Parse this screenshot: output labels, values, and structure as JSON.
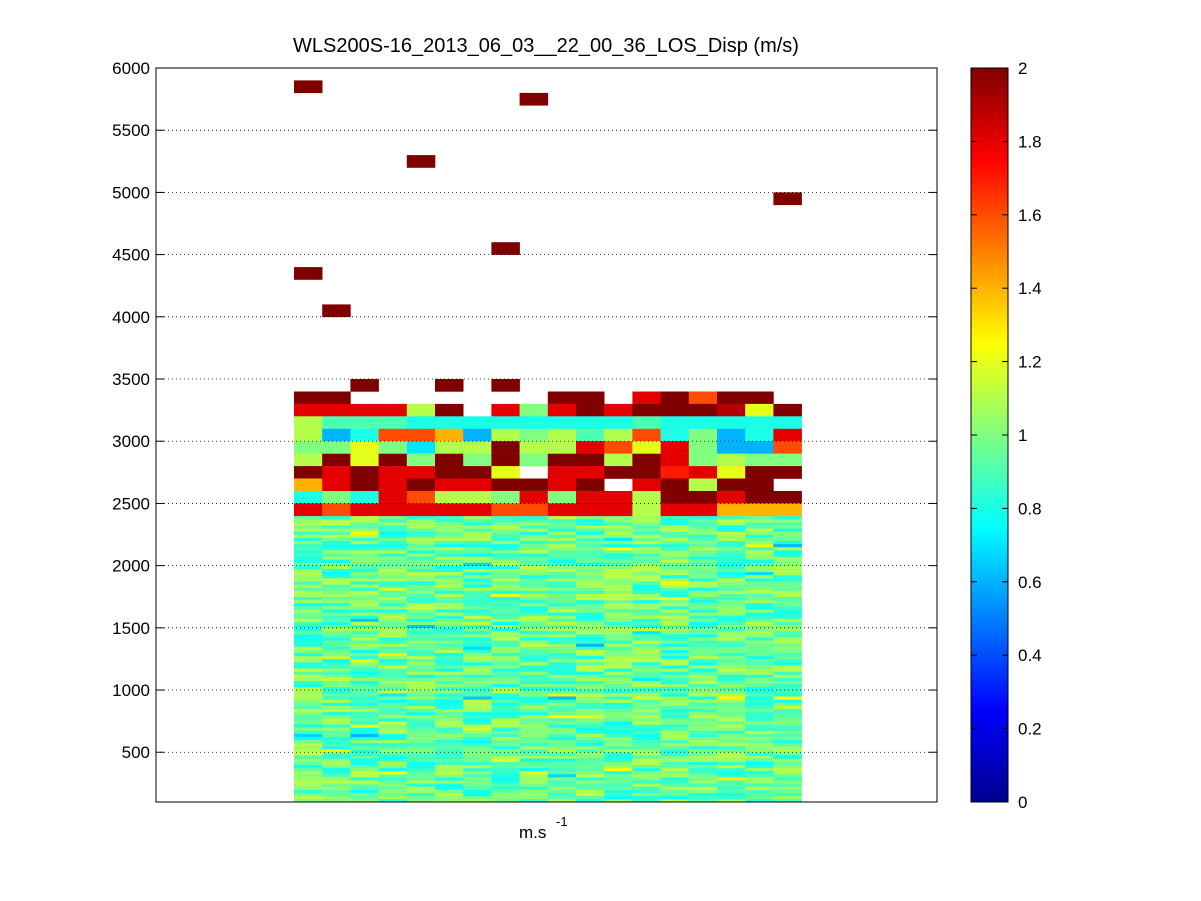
{
  "chart_data": {
    "type": "heatmap",
    "title": "WLS200S-16_2013_06_03__22_00_36_LOS_Disp (m/s)",
    "xlabel_base": "m.s",
    "xlabel_exp": "-1",
    "ylim": [
      100,
      6000
    ],
    "yticks": [
      500,
      1000,
      1500,
      2000,
      2500,
      3000,
      3500,
      4000,
      4500,
      5000,
      5500,
      6000
    ],
    "grid": "horizontal dotted",
    "colorbar": {
      "clim": [
        0,
        2
      ],
      "ticks": [
        0,
        0.2,
        0.4,
        0.6,
        0.8,
        1,
        1.2,
        1.4,
        1.6,
        1.8,
        2
      ],
      "colormap": "jet"
    },
    "n_columns": 18,
    "dense_rows_top": 2400,
    "dense_rows_bottom": 100,
    "dense_row_step": 25,
    "upper_rows": [
      {
        "y": 3350,
        "values": [
          2,
          2,
          null,
          null,
          null,
          null,
          null,
          null,
          null,
          2,
          2,
          null,
          1.8,
          2,
          1.6,
          2,
          2,
          null
        ]
      },
      {
        "y": 3250,
        "values": [
          1.8,
          1.8,
          1.8,
          1.8,
          1.1,
          2,
          null,
          1.8,
          1.0,
          1.8,
          2,
          1.8,
          2,
          2,
          2,
          1.9,
          1.2,
          2
        ]
      },
      {
        "y": 3150,
        "values": [
          1.1,
          0.9,
          0.9,
          0.9,
          0.8,
          0.8,
          0.8,
          0.8,
          0.8,
          0.8,
          0.8,
          0.8,
          0.9,
          0.8,
          0.8,
          0.8,
          0.8,
          0.8
        ]
      },
      {
        "y": 3050,
        "values": [
          1.1,
          0.6,
          0.8,
          1.6,
          1.6,
          1.4,
          0.6,
          1.1,
          1.0,
          1.1,
          0.9,
          1.1,
          1.6,
          0.8,
          1.0,
          0.6,
          0.8,
          1.8
        ]
      },
      {
        "y": 2950,
        "values": [
          1.0,
          1.0,
          1.2,
          1.0,
          0.7,
          1.1,
          1.1,
          2,
          1.1,
          1.1,
          1.8,
          1.6,
          1.2,
          1.8,
          1.0,
          0.6,
          0.6,
          1.6
        ]
      },
      {
        "y": 2850,
        "values": [
          1.1,
          2,
          1.2,
          2,
          1.0,
          2,
          1.0,
          2,
          1.0,
          2,
          2,
          1.1,
          2,
          1.8,
          1.0,
          1.1,
          1.0,
          1.0
        ]
      },
      {
        "y": 2750,
        "values": [
          2,
          1.8,
          2,
          1.8,
          1.8,
          2,
          2,
          1.2,
          null,
          1.8,
          1.8,
          2,
          2,
          1.7,
          1.8,
          1.2,
          2,
          2
        ]
      },
      {
        "y": 2650,
        "values": [
          1.4,
          1.8,
          2,
          1.8,
          2,
          1.8,
          1.8,
          2,
          2,
          1.8,
          2,
          null,
          1.8,
          2,
          1.1,
          2,
          2,
          null
        ]
      },
      {
        "y": 2550,
        "values": [
          0.8,
          1.0,
          0.8,
          1.8,
          1.6,
          1.1,
          1.1,
          1.0,
          1.8,
          1.0,
          1.8,
          1.8,
          1.1,
          2,
          2,
          1.8,
          2,
          2
        ]
      },
      {
        "y": 2450,
        "values": [
          1.8,
          1.6,
          1.8,
          1.8,
          1.8,
          1.8,
          1.8,
          1.6,
          1.6,
          1.8,
          1.8,
          1.8,
          1.1,
          1.8,
          1.8,
          1.4,
          1.4,
          1.4
        ]
      }
    ],
    "scattered_cells": [
      {
        "col": 0,
        "y": 5850,
        "value": 2
      },
      {
        "col": 4,
        "y": 5250,
        "value": 2
      },
      {
        "col": 8,
        "y": 5750,
        "value": 2
      },
      {
        "col": 17,
        "y": 4950,
        "value": 2
      },
      {
        "col": 7,
        "y": 4550,
        "value": 2
      },
      {
        "col": 0,
        "y": 4350,
        "value": 2
      },
      {
        "col": 1,
        "y": 4050,
        "value": 2
      },
      {
        "col": 2,
        "y": 3450,
        "value": 2
      },
      {
        "col": 5,
        "y": 3450,
        "value": 2
      },
      {
        "col": 7,
        "y": 3450,
        "value": 2
      }
    ],
    "dense_value_range": [
      0.6,
      1.3
    ]
  }
}
